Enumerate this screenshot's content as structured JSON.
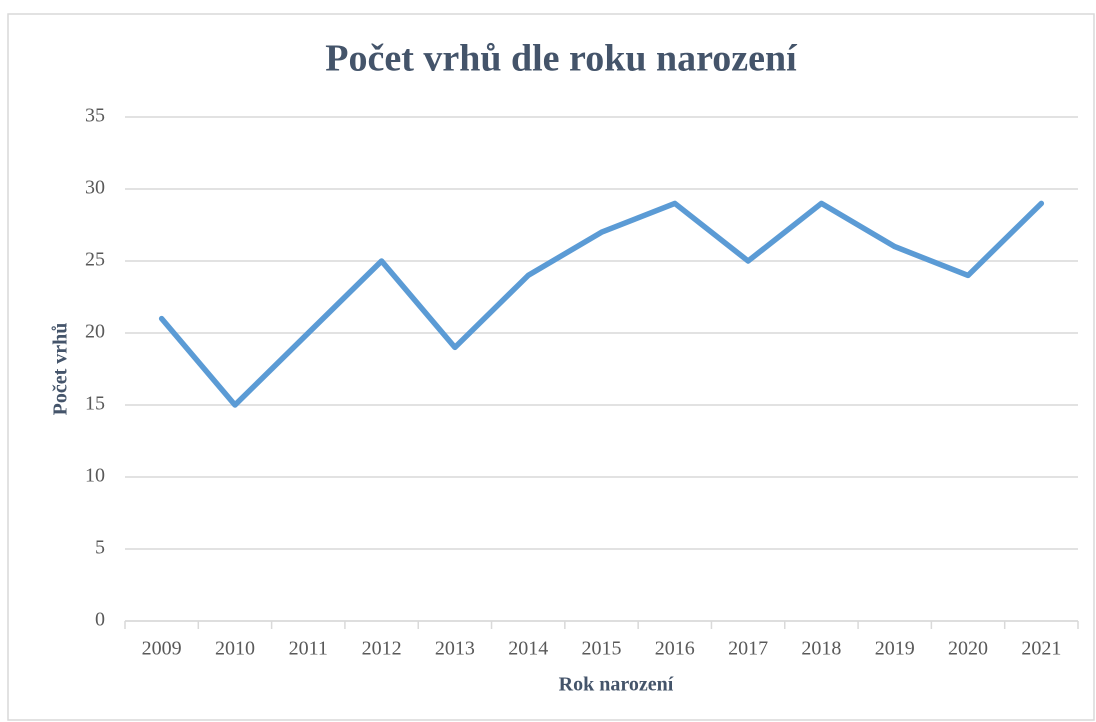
{
  "chart_data": {
    "type": "line",
    "title": "Počet vrhů dle roku narození",
    "x_label": "Rok narození",
    "y_label": "Počet vrhů",
    "categories": [
      "2009",
      "2010",
      "2011",
      "2012",
      "2013",
      "2014",
      "2015",
      "2016",
      "2017",
      "2018",
      "2019",
      "2020",
      "2021"
    ],
    "series": [
      {
        "name": "Počet vrhů",
        "color": "#5b9bd5",
        "values": [
          21,
          15,
          20,
          25,
          19,
          24,
          27,
          29,
          25,
          29,
          26,
          24,
          29
        ]
      }
    ],
    "ylim": [
      0,
      35
    ],
    "yticks": [
      0,
      5,
      10,
      15,
      20,
      25,
      30,
      35
    ],
    "grid": true
  }
}
